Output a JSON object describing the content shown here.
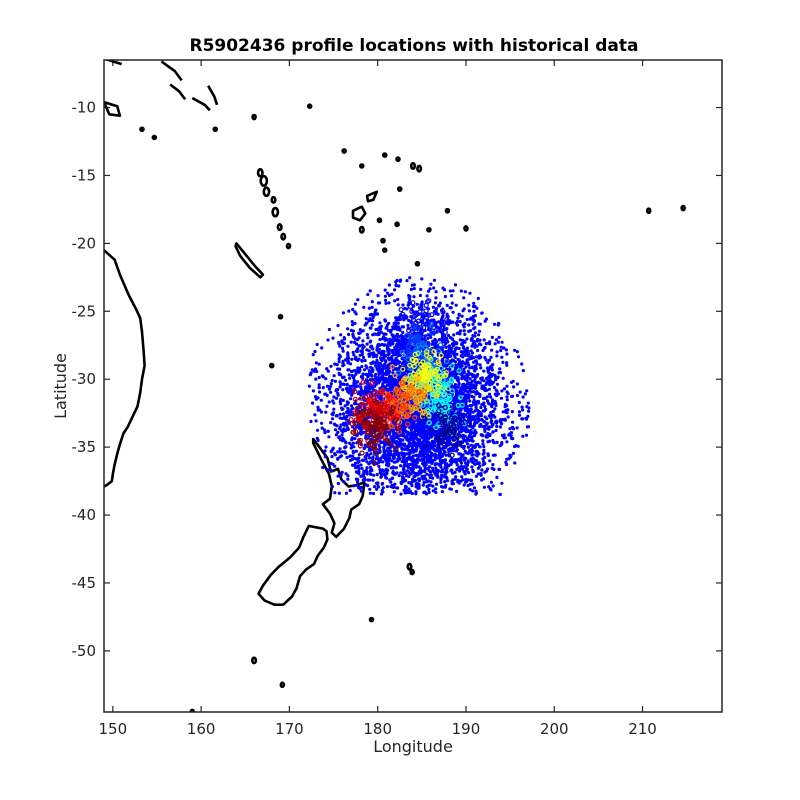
{
  "chart_data": {
    "type": "scatter",
    "title": "R5902436 profile locations with historical data",
    "xlabel": "Longitude",
    "ylabel": "Latitude",
    "xlim": [
      149,
      219
    ],
    "ylim": [
      -54.5,
      -6.5
    ],
    "xticks": [
      150,
      160,
      170,
      180,
      190,
      200,
      210
    ],
    "xtick_labels": [
      "150",
      "160",
      "170",
      "180",
      "190",
      "200",
      "210"
    ],
    "yticks": [
      -10,
      -15,
      -20,
      -25,
      -30,
      -35,
      -40,
      -45,
      -50
    ],
    "ytick_labels": [
      "-10",
      "-15",
      "-20",
      "-25",
      "-30",
      "-35",
      "-40",
      "-45",
      "-50"
    ],
    "grid": false,
    "colors": {
      "historical": "#0000ff",
      "coastline": "#000000",
      "colormap": [
        "#00008f",
        "#0000ff",
        "#0080ff",
        "#00ffff",
        "#80ff80",
        "#ffff00",
        "#ff8000",
        "#ff0000",
        "#800000"
      ]
    },
    "historical_cloud": {
      "color": "#0000ff",
      "center": [
        184.5,
        -32.0
      ],
      "extent_lon": [
        172.0,
        197.5
      ],
      "extent_lat": [
        -38.5,
        -21.5
      ],
      "approx_points": 5000
    },
    "profile_track": [
      {
        "lon": 185.0,
        "lat": -26.0,
        "color": "#0000ff"
      },
      {
        "lon": 185.0,
        "lat": -27.5,
        "color": "#0040ff"
      },
      {
        "lon": 185.2,
        "lat": -29.0,
        "color": "#0080ff"
      },
      {
        "lon": 186.5,
        "lat": -30.5,
        "color": "#00ffff"
      },
      {
        "lon": 187.5,
        "lat": -32.0,
        "color": "#00ffff"
      },
      {
        "lon": 185.5,
        "lat": -30.0,
        "color": "#80ff80"
      },
      {
        "lon": 185.5,
        "lat": -29.5,
        "color": "#ffff00"
      },
      {
        "lon": 184.0,
        "lat": -31.0,
        "color": "#ffc000"
      },
      {
        "lon": 183.0,
        "lat": -31.5,
        "color": "#ff8000"
      },
      {
        "lon": 182.0,
        "lat": -32.0,
        "color": "#ff4000"
      },
      {
        "lon": 180.0,
        "lat": -32.5,
        "color": "#ff0000"
      },
      {
        "lon": 178.5,
        "lat": -33.0,
        "color": "#c00000"
      },
      {
        "lon": 180.0,
        "lat": -33.5,
        "color": "#800000"
      },
      {
        "lon": 188.0,
        "lat": -33.5,
        "color": "#00008f"
      }
    ]
  }
}
